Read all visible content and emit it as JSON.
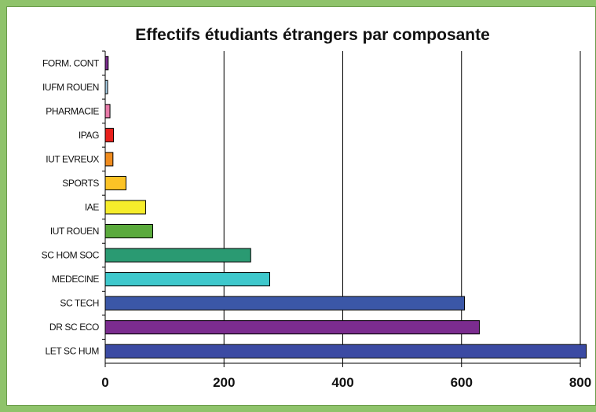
{
  "chart_data": {
    "type": "bar",
    "orientation": "horizontal",
    "title": "Effectifs étudiants étrangers par composante",
    "xlabel": "",
    "ylabel": "",
    "xlim": [
      0,
      800
    ],
    "ticks": [
      0,
      200,
      400,
      600,
      800
    ],
    "grid": true,
    "legend": "none",
    "categories": [
      "FORM. CONT",
      "IUFM ROUEN",
      "PHARMACIE",
      "IPAG",
      "IUT EVREUX",
      "SPORTS",
      "IAE",
      "IUT ROUEN",
      "SC HOM SOC",
      "MEDECINE",
      "SC TECH",
      "DR SC ECO",
      "LET SC HUM"
    ],
    "values": [
      5,
      4,
      8,
      14,
      13,
      35,
      68,
      80,
      245,
      277,
      605,
      630,
      810
    ],
    "colors": [
      "#7b2c8f",
      "#a8d0e8",
      "#e87aa8",
      "#e8201c",
      "#f08c1e",
      "#fcc326",
      "#f6ed2b",
      "#5aaa3c",
      "#2a9a72",
      "#3ec8cc",
      "#3b57a7",
      "#7b2c8f",
      "#3b4aa3"
    ]
  }
}
